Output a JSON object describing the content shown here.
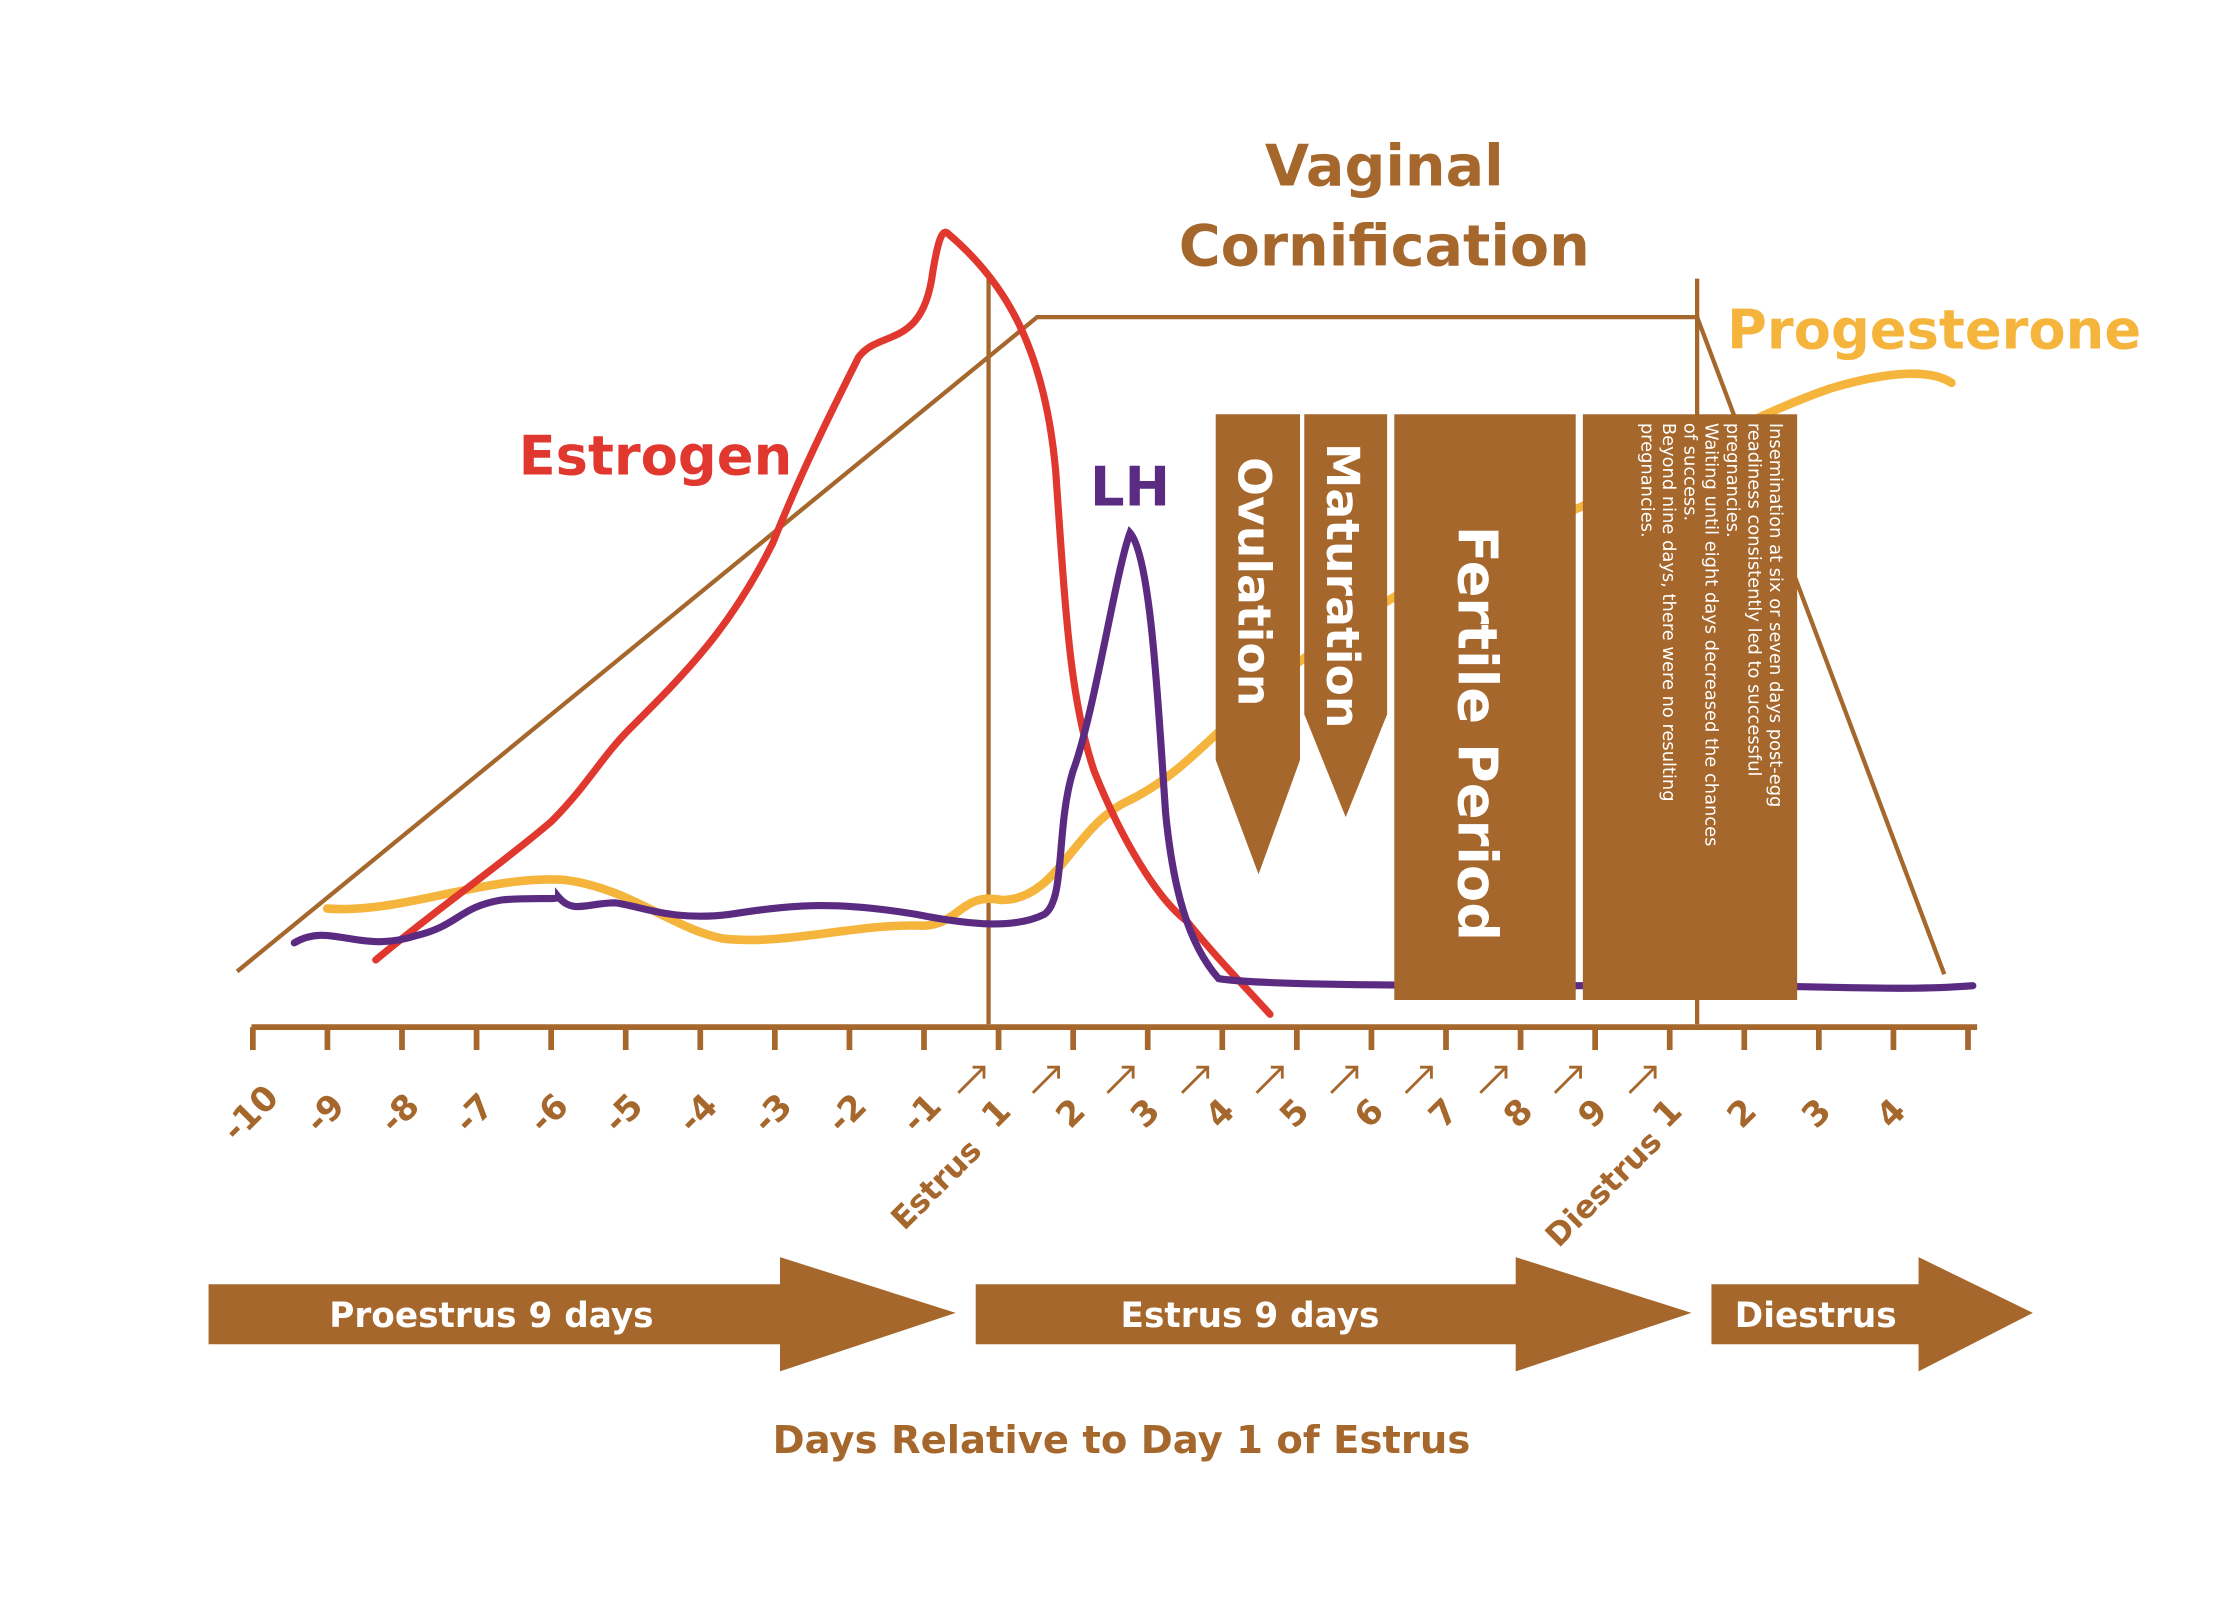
{
  "colors": {
    "brown": "#a5672c",
    "estrogen": "#e0372e",
    "lh": "#5b2b82",
    "progesterone": "#f5b43c",
    "white": "#ffffff"
  },
  "labels": {
    "vaginal_1": "Vaginal",
    "vaginal_2": "Cornification",
    "progesterone": "Progesterone",
    "estrogen": "Estrogen",
    "lh": "LH",
    "ovulation": "Ovulation",
    "maturation": "Maturation",
    "fertile": "Fertile Period",
    "note_lines": [
      "Insemination at six or seven days post-egg",
      "readiness consistently led to successful",
      "pregnancies.",
      "Waiting until eight days decreased the chances",
      "of success.",
      "Beyond nine days, there were no resulting",
      "pregnancies."
    ],
    "estrus_marker": "Estrus",
    "diestrus_marker": "Diestrus",
    "phase_proestrus": "Proestrus 9 days",
    "phase_estrus": "Estrus 9 days",
    "phase_diestrus": "Diestrus",
    "x_title": "Days Relative to Day 1 of Estrus"
  },
  "ticks": [
    "-10",
    "-9",
    "-8",
    "-7",
    "-6",
    "-5",
    "-4",
    "-3",
    "-2",
    "-1",
    "1",
    "2",
    "3",
    "4",
    "5",
    "6",
    "7",
    "8",
    "9",
    "1",
    "2",
    "3",
    "4"
  ]
}
